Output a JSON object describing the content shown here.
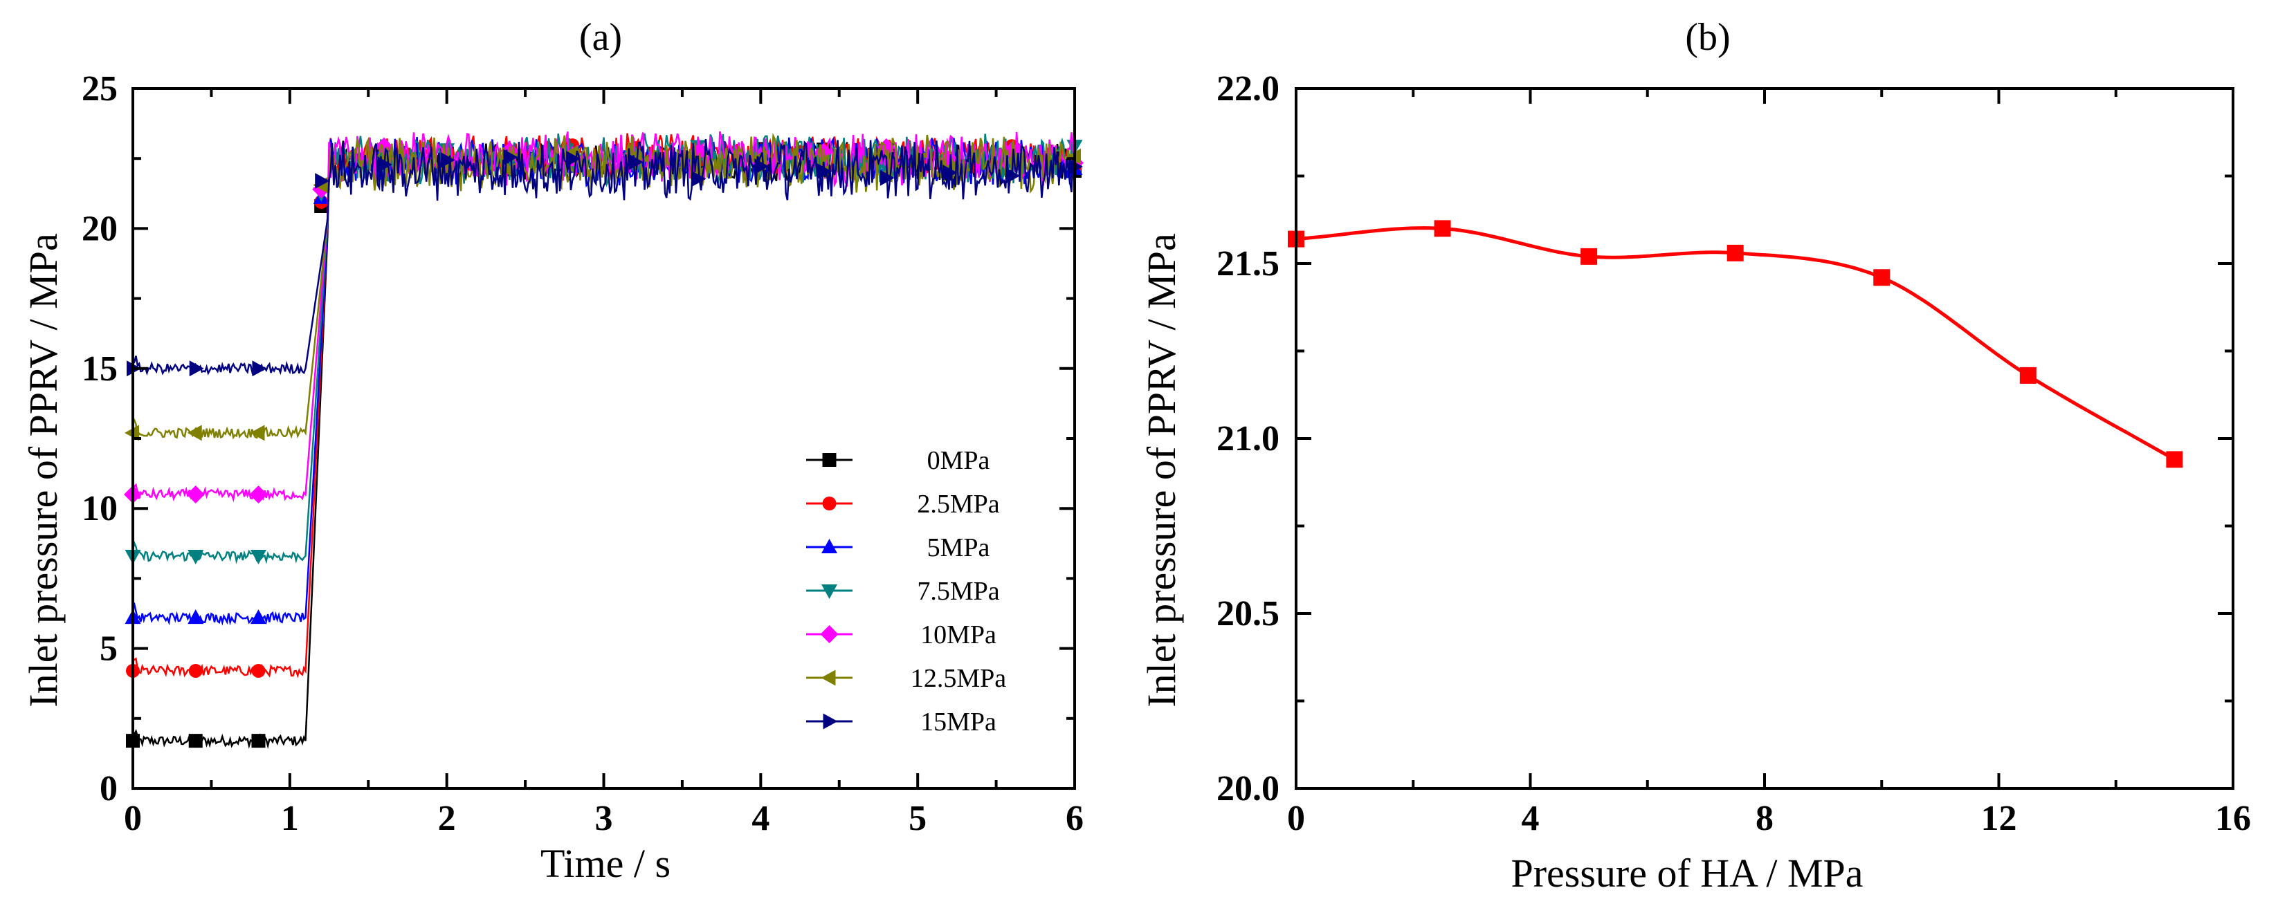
{
  "chart_data": [
    {
      "panel": "(a)",
      "type": "line",
      "xlabel": "Time / s",
      "ylabel": "Inlet pressure of PPRV  / MPa",
      "xlim": [
        0,
        6
      ],
      "ylim": [
        0,
        25
      ],
      "xticks": [
        "0",
        "1",
        "2",
        "3",
        "4",
        "5",
        "6"
      ],
      "yticks": [
        "0",
        "5",
        "10",
        "15",
        "20",
        "25"
      ],
      "legend_position": "bottom-right",
      "step_time": 1.1,
      "rise_end_time": 1.25,
      "series": [
        {
          "name": "0MPa",
          "color": "#000000",
          "marker": "square",
          "initial": 1.7,
          "final": 22.4
        },
        {
          "name": "2.5MPa",
          "color": "#ff0000",
          "marker": "circle",
          "initial": 4.2,
          "final": 22.6
        },
        {
          "name": "5MPa",
          "color": "#0000ff",
          "marker": "triangle-up",
          "initial": 6.1,
          "final": 22.4
        },
        {
          "name": "7.5MPa",
          "color": "#008080",
          "marker": "triangle-down",
          "initial": 8.3,
          "final": 22.5
        },
        {
          "name": "10MPa",
          "color": "#ff00ff",
          "marker": "diamond",
          "initial": 10.5,
          "final": 22.5
        },
        {
          "name": "12.5MPa",
          "color": "#808000",
          "marker": "triangle-left",
          "initial": 12.7,
          "final": 22.3
        },
        {
          "name": "15MPa",
          "color": "#000080",
          "marker": "triangle-right",
          "initial": 15.0,
          "final": 22.1
        }
      ]
    },
    {
      "panel": "(b)",
      "type": "line",
      "xlabel": "Pressure of HA / MPa",
      "ylabel": "Inlet pressure of PPRV  / MPa",
      "xlim": [
        0,
        16
      ],
      "ylim": [
        20.0,
        22.0
      ],
      "xticks": [
        "0",
        "4",
        "8",
        "12",
        "16"
      ],
      "yticks": [
        "20.0",
        "20.5",
        "21.0",
        "21.5",
        "22.0"
      ],
      "series": [
        {
          "name": "Inlet pressure",
          "color": "#ff0000",
          "marker": "square",
          "x": [
            0,
            2.5,
            5,
            7.5,
            10,
            12.5,
            15
          ],
          "y": [
            21.57,
            21.6,
            21.52,
            21.53,
            21.46,
            21.18,
            20.94
          ]
        }
      ]
    }
  ]
}
